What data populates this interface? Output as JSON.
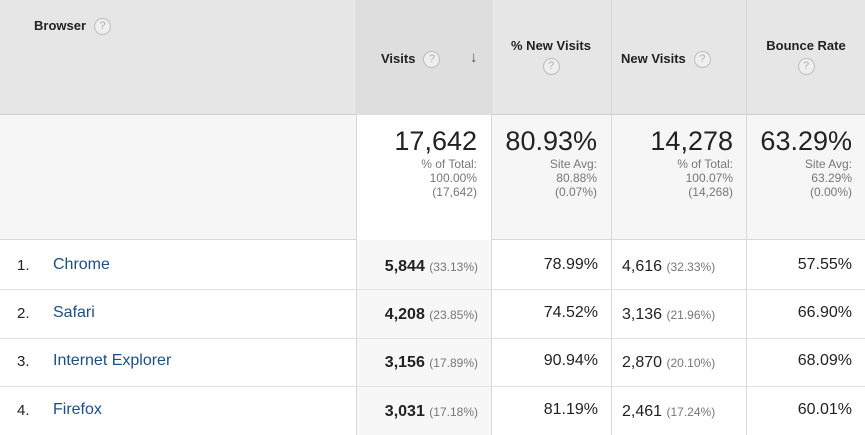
{
  "columns": {
    "browser": "Browser",
    "visits": "Visits",
    "new_visits_pct": "% New Visits",
    "new_visits": "New Visits",
    "bounce_rate": "Bounce Rate",
    "help_glyph": "?",
    "sort_glyph": "↓"
  },
  "summary": {
    "visits": {
      "value": "17,642",
      "line1": "% of Total:",
      "line2": "100.00%",
      "line3": "(17,642)"
    },
    "new_visits_pct": {
      "value": "80.93%",
      "line1": "Site Avg:",
      "line2": "80.88%",
      "line3": "(0.07%)"
    },
    "new_visits": {
      "value": "14,278",
      "line1": "% of Total:",
      "line2": "100.07%",
      "line3": "(14,268)"
    },
    "bounce_rate": {
      "value": "63.29%",
      "line1": "Site Avg:",
      "line2": "63.29%",
      "line3": "(0.00%)"
    }
  },
  "rows": [
    {
      "rank": "1.",
      "browser": "Chrome",
      "visits": "5,844",
      "visits_pct": "(33.13%)",
      "new_visits_pct": "78.99%",
      "new_visits": "4,616",
      "new_visits_share": "(32.33%)",
      "bounce_rate": "57.55%"
    },
    {
      "rank": "2.",
      "browser": "Safari",
      "visits": "4,208",
      "visits_pct": "(23.85%)",
      "new_visits_pct": "74.52%",
      "new_visits": "3,136",
      "new_visits_share": "(21.96%)",
      "bounce_rate": "66.90%"
    },
    {
      "rank": "3.",
      "browser": "Internet Explorer",
      "visits": "3,156",
      "visits_pct": "(17.89%)",
      "new_visits_pct": "90.94%",
      "new_visits": "2,870",
      "new_visits_share": "(20.10%)",
      "bounce_rate": "68.09%"
    },
    {
      "rank": "4.",
      "browser": "Firefox",
      "visits": "3,031",
      "visits_pct": "(17.18%)",
      "new_visits_pct": "81.19%",
      "new_visits": "2,461",
      "new_visits_share": "(17.24%)",
      "bounce_rate": "60.01%"
    }
  ]
}
